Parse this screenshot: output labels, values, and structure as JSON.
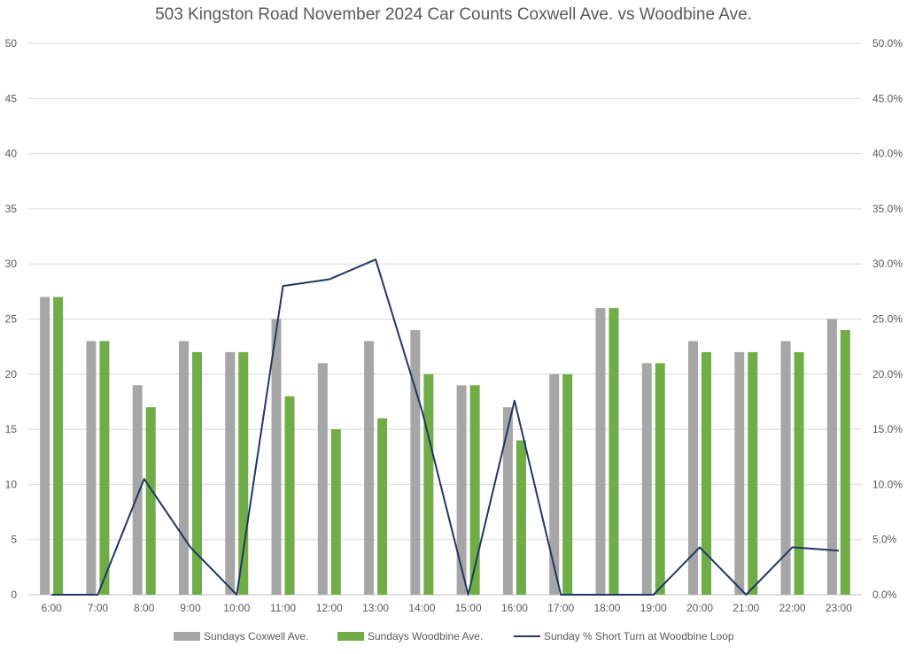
{
  "chart_data": {
    "type": "bar",
    "title": "503 Kingston Road November 2024 Car Counts Coxwell Ave. vs Woodbine Ave.",
    "categories": [
      "6:00",
      "7:00",
      "8:00",
      "9:00",
      "10:00",
      "11:00",
      "12:00",
      "13:00",
      "14:00",
      "15:00",
      "16:00",
      "17:00",
      "18:00",
      "19:00",
      "20:00",
      "21:00",
      "22:00",
      "23:00"
    ],
    "series": [
      {
        "name": "Sundays Coxwell Ave.",
        "type": "bar",
        "axis": "left",
        "color": "#a6a6a6",
        "values": [
          27,
          23,
          19,
          23,
          22,
          25,
          21,
          23,
          24,
          19,
          17,
          20,
          26,
          21,
          23,
          22,
          23,
          25
        ]
      },
      {
        "name": "Sundays Woodbine Ave.",
        "type": "bar",
        "axis": "left",
        "color": "#70ad47",
        "values": [
          27,
          23,
          17,
          22,
          22,
          18,
          15,
          16,
          20,
          19,
          14,
          20,
          26,
          21,
          22,
          22,
          22,
          24
        ]
      },
      {
        "name": "Sunday % Short Turn at Woodbine Loop",
        "type": "line",
        "axis": "right",
        "color": "#1f3864",
        "values": [
          0.0,
          0.0,
          10.5,
          4.3,
          0.0,
          28.0,
          28.6,
          30.4,
          16.7,
          0.0,
          17.6,
          0.0,
          0.0,
          0.0,
          4.3,
          0.0,
          4.3,
          4.0
        ]
      }
    ],
    "y_left": {
      "min": 0,
      "max": 50,
      "ticks": [
        "0",
        "5",
        "10",
        "15",
        "20",
        "25",
        "30",
        "35",
        "40",
        "45",
        "50"
      ]
    },
    "y_right": {
      "min": 0,
      "max": 50,
      "ticks": [
        "0.0%",
        "5.0%",
        "10.0%",
        "15.0%",
        "20.0%",
        "25.0%",
        "30.0%",
        "35.0%",
        "40.0%",
        "45.0%",
        "50.0%"
      ]
    },
    "grid": true,
    "legend_position": "bottom"
  }
}
